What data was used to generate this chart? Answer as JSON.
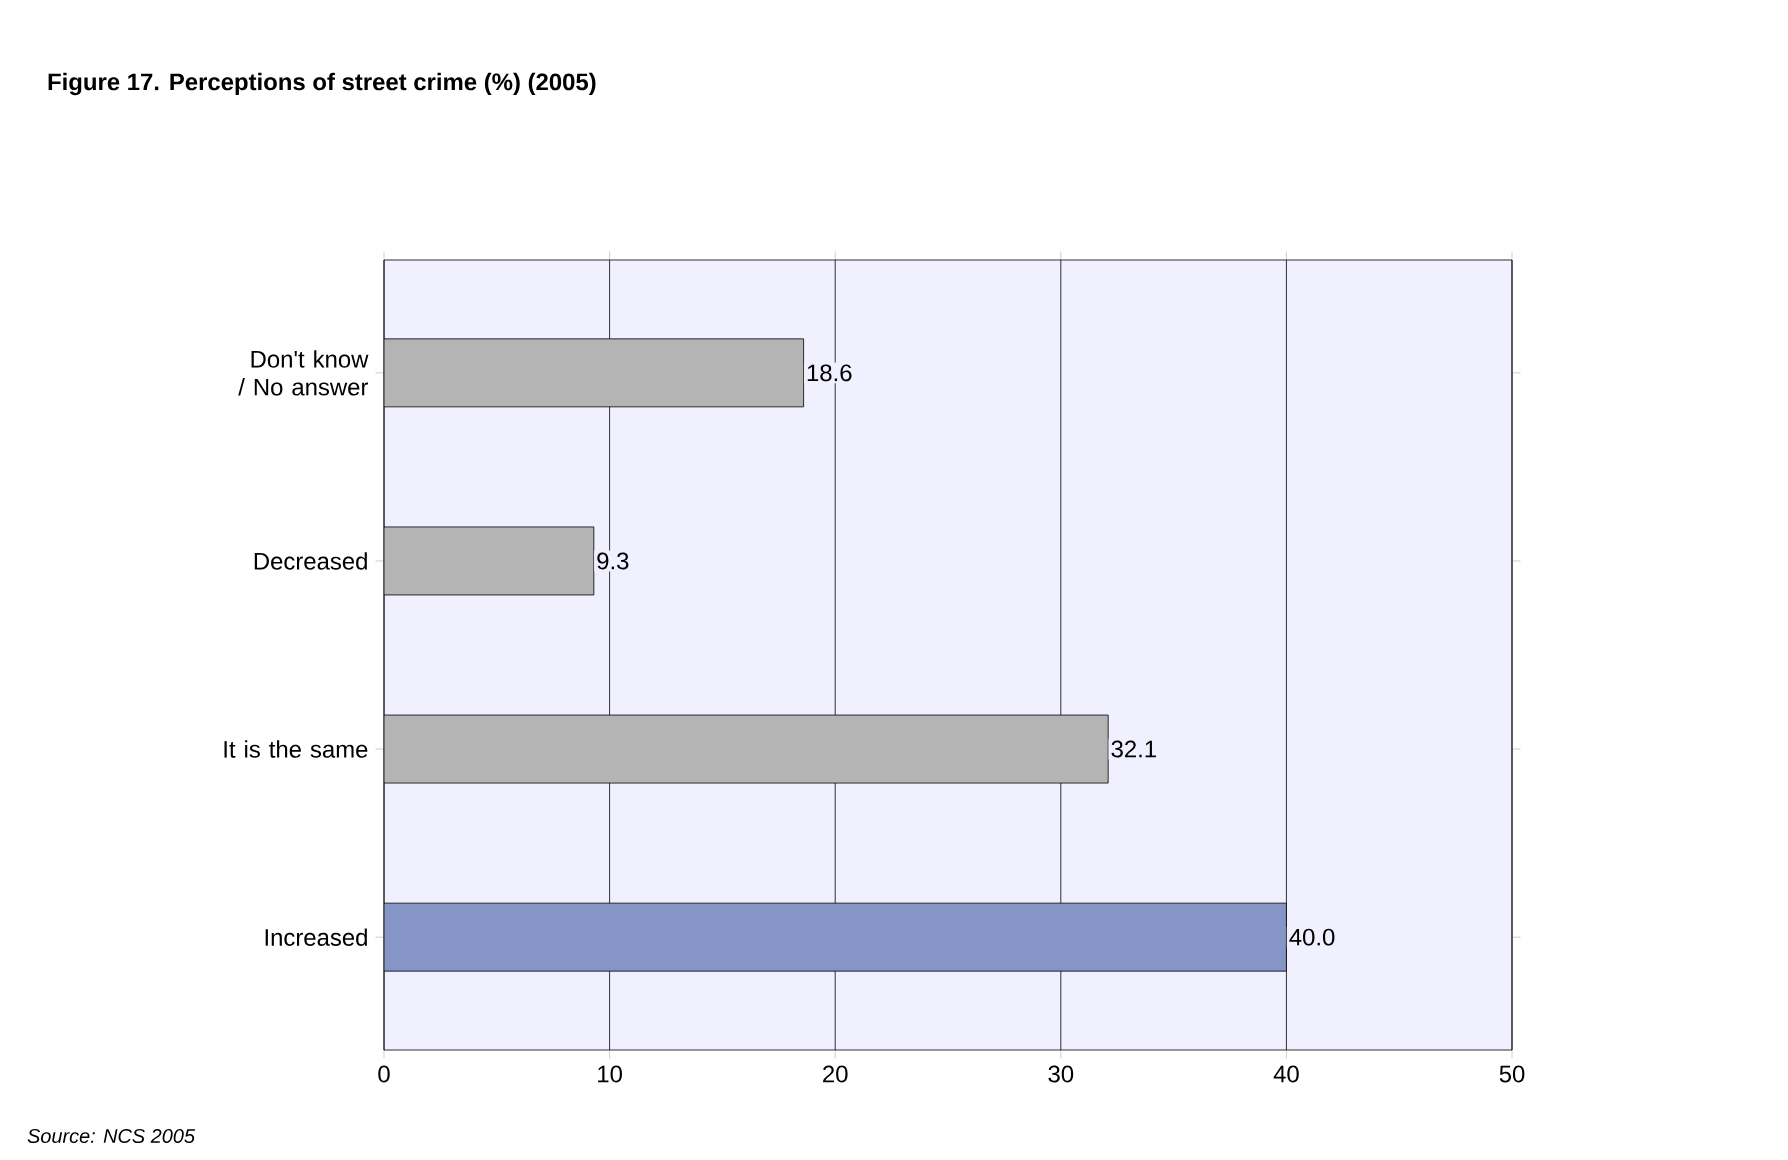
{
  "chart_data": {
    "type": "bar",
    "orientation": "horizontal",
    "title": "Figure 17. Perceptions of street crime (%) (2005)",
    "categories": [
      "Don't know / No answer",
      "Decreased",
      "It is the same",
      "Increased"
    ],
    "values": [
      18.6,
      9.3,
      32.1,
      40.0
    ],
    "value_labels": [
      "18.6",
      "9.3",
      "32.1",
      "40.0"
    ],
    "colors": [
      "#b4b4b4",
      "#b4b4b4",
      "#b4b4b4",
      "#8595c6"
    ],
    "xlim": [
      0,
      50
    ],
    "xticks": [
      0,
      10,
      20,
      30,
      40,
      50
    ],
    "grid": "x",
    "annotations": [
      "Source: NCS 2005"
    ]
  }
}
